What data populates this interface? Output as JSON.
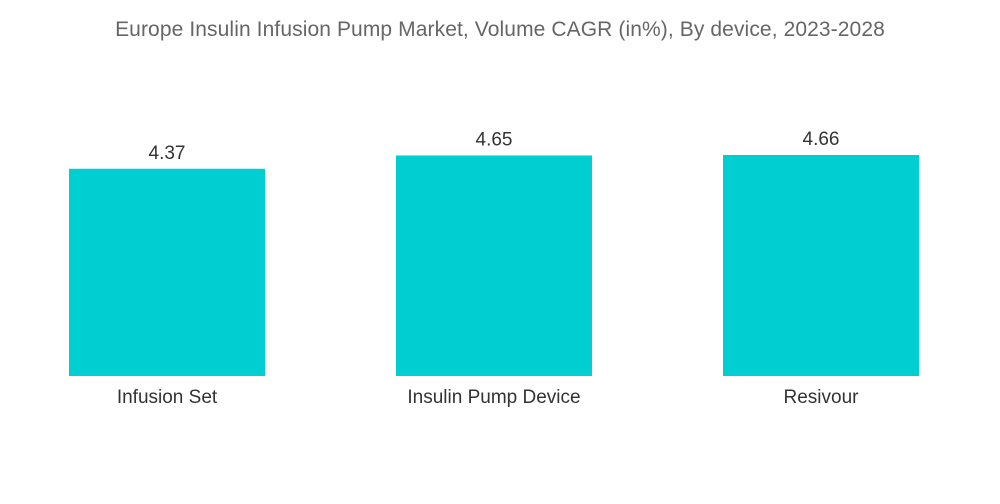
{
  "chart_data": {
    "type": "bar",
    "title": "Europe Insulin Infusion Pump Market, Volume CAGR (in%), By device, 2023-2028",
    "categories": [
      "Infusion Set",
      "Insulin Pump Device",
      "Resivour"
    ],
    "values": [
      4.37,
      4.65,
      4.66
    ],
    "value_labels": [
      "4.37",
      "4.65",
      "4.66"
    ],
    "xlabel": "",
    "ylabel": "",
    "ylim": [
      0,
      4.66
    ],
    "grid": false,
    "legend": "none",
    "bar_color": "#00CED1"
  }
}
